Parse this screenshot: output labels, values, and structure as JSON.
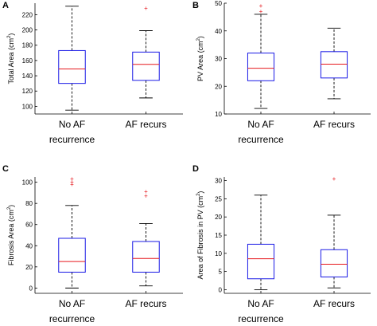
{
  "chart_data": [
    {
      "type": "box",
      "panel_label": "A",
      "ylabel": "Total Area (cm",
      "ylabel_sup": "2",
      "ylabel_tail": ")",
      "ylim": [
        90,
        235
      ],
      "yticks": [
        100,
        120,
        140,
        160,
        180,
        200,
        220
      ],
      "categories": [
        "No AF recurrence",
        "AF recurs"
      ],
      "category_lines": [
        [
          "No AF",
          "recurrence"
        ],
        [
          "AF recurs"
        ]
      ],
      "boxes": [
        {
          "min": 95,
          "q1": 130,
          "median": 149,
          "q3": 173,
          "max": 231,
          "outliers": []
        },
        {
          "min": 111,
          "q1": 134,
          "median": 155,
          "q3": 171,
          "max": 199,
          "outliers": [
            228
          ]
        }
      ]
    },
    {
      "type": "box",
      "panel_label": "B",
      "ylabel": "PV Area (cm",
      "ylabel_sup": "2",
      "ylabel_tail": ")",
      "ylim": [
        10,
        50
      ],
      "yticks": [
        10,
        20,
        30,
        40,
        50
      ],
      "categories": [
        "No AF recurrence",
        "AF recurs"
      ],
      "category_lines": [
        [
          "No AF",
          "recurrence"
        ],
        [
          "AF recurs"
        ]
      ],
      "boxes": [
        {
          "min": 12,
          "q1": 22,
          "median": 26.5,
          "q3": 32,
          "max": 46,
          "outliers": [
            47,
            49
          ]
        },
        {
          "min": 15.5,
          "q1": 23,
          "median": 28,
          "q3": 32.5,
          "max": 41,
          "outliers": []
        }
      ]
    },
    {
      "type": "box",
      "panel_label": "C",
      "ylabel": "Fibrosis Area (cm",
      "ylabel_sup": "2",
      "ylabel_tail": ")",
      "ylim": [
        -5,
        105
      ],
      "yticks": [
        0,
        20,
        40,
        60,
        80,
        100
      ],
      "categories": [
        "No AF recurrence",
        "AF recurs"
      ],
      "category_lines": [
        [
          "No AF",
          "recurrence"
        ],
        [
          "AF recurs"
        ]
      ],
      "boxes": [
        {
          "min": 0,
          "q1": 15,
          "median": 25,
          "q3": 47,
          "max": 78,
          "outliers": [
            98,
            100,
            103
          ]
        },
        {
          "min": 2,
          "q1": 15,
          "median": 28,
          "q3": 44,
          "max": 61,
          "outliers": [
            87,
            91
          ]
        }
      ]
    },
    {
      "type": "box",
      "panel_label": "D",
      "ylabel": "Area of Fibrosis in PV (cm",
      "ylabel_sup": "2",
      "ylabel_tail": ")",
      "ylim": [
        -1,
        31
      ],
      "yticks": [
        0,
        5,
        10,
        15,
        20,
        25,
        30
      ],
      "categories": [
        "No AF recurrence",
        "AF recurs"
      ],
      "category_lines": [
        [
          "No AF",
          "recurrence"
        ],
        [
          "AF recurs"
        ]
      ],
      "boxes": [
        {
          "min": 0,
          "q1": 3,
          "median": 8.5,
          "q3": 12.5,
          "max": 26,
          "outliers": []
        },
        {
          "min": 0.5,
          "q1": 3.5,
          "median": 7,
          "q3": 11,
          "max": 20.5,
          "outliers": [
            30.5
          ]
        }
      ]
    }
  ],
  "colors": {
    "box": "#1a1ae6",
    "median": "#e6191e",
    "outlier": "#e6191e",
    "whisker": "#000000",
    "axis": "#000000"
  }
}
